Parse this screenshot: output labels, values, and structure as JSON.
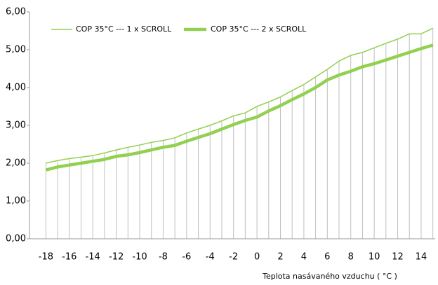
{
  "chart_data": {
    "type": "line",
    "x": [
      -18,
      -17,
      -16,
      -15,
      -14,
      -13,
      -12,
      -11,
      -10,
      -9,
      -8,
      -7,
      -6,
      -5,
      -4,
      -3,
      -2,
      -1,
      0,
      1,
      2,
      3,
      4,
      5,
      6,
      7,
      8,
      9,
      10,
      11,
      12,
      13,
      14,
      15
    ],
    "series": [
      {
        "name": "COP 35°C --- 1 x SCROLL",
        "color": "#92d050",
        "values": [
          2.0,
          2.07,
          2.12,
          2.16,
          2.2,
          2.27,
          2.35,
          2.42,
          2.48,
          2.55,
          2.6,
          2.67,
          2.8,
          2.9,
          3.0,
          3.12,
          3.25,
          3.33,
          3.5,
          3.62,
          3.75,
          3.92,
          4.08,
          4.28,
          4.48,
          4.7,
          4.85,
          4.93,
          5.05,
          5.17,
          5.28,
          5.42,
          5.42,
          5.57
        ]
      },
      {
        "name": "COP 35°C --- 2 x SCROLL",
        "color": "#92d050",
        "values": [
          1.82,
          1.9,
          1.95,
          2.0,
          2.05,
          2.1,
          2.18,
          2.22,
          2.28,
          2.35,
          2.42,
          2.47,
          2.58,
          2.68,
          2.78,
          2.9,
          3.02,
          3.13,
          3.22,
          3.38,
          3.52,
          3.68,
          3.83,
          4.0,
          4.2,
          4.33,
          4.43,
          4.55,
          4.63,
          4.73,
          4.83,
          4.93,
          5.03,
          5.12
        ]
      }
    ],
    "x_label": "Teplota nasávaného vzduchu ( °C )",
    "xlim": [
      -19.4,
      15.2
    ],
    "xticks": [
      -18,
      -16,
      -14,
      -12,
      -10,
      -8,
      -6,
      -4,
      -2,
      0,
      2,
      4,
      6,
      8,
      10,
      12,
      14
    ],
    "ylim": [
      0,
      6
    ],
    "yticks": [
      {
        "value": 0,
        "label": "0,00"
      },
      {
        "value": 1,
        "label": "1,00"
      },
      {
        "value": 2,
        "label": "2,00"
      },
      {
        "value": 3,
        "label": "3,00"
      },
      {
        "value": 4,
        "label": "4,00"
      },
      {
        "value": 5,
        "label": "5,00"
      },
      {
        "value": 6,
        "label": "6,00"
      }
    ],
    "drop_lines": true,
    "legend": "top-left"
  }
}
